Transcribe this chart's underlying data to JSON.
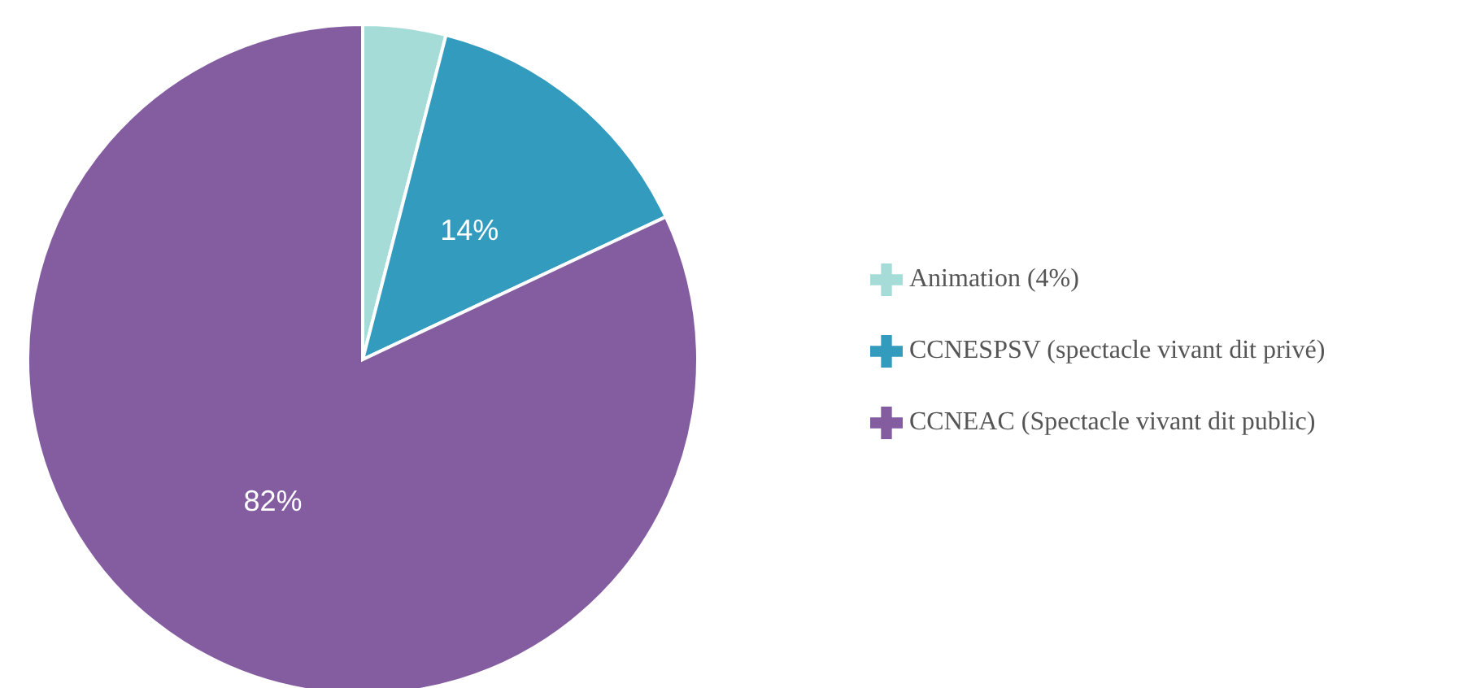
{
  "chart_data": {
    "type": "pie",
    "categories": [
      "Animation (4%)",
      "CCNESPSV (spectacle vivant dit privé)",
      "CCNEAC (Spectacle vivant dit public)"
    ],
    "values": [
      4,
      14,
      82
    ],
    "colors": [
      "#a6dcd8",
      "#339bbd",
      "#845ca0"
    ],
    "value_labels": [
      null,
      "14%",
      "82%"
    ],
    "legend": "right"
  }
}
